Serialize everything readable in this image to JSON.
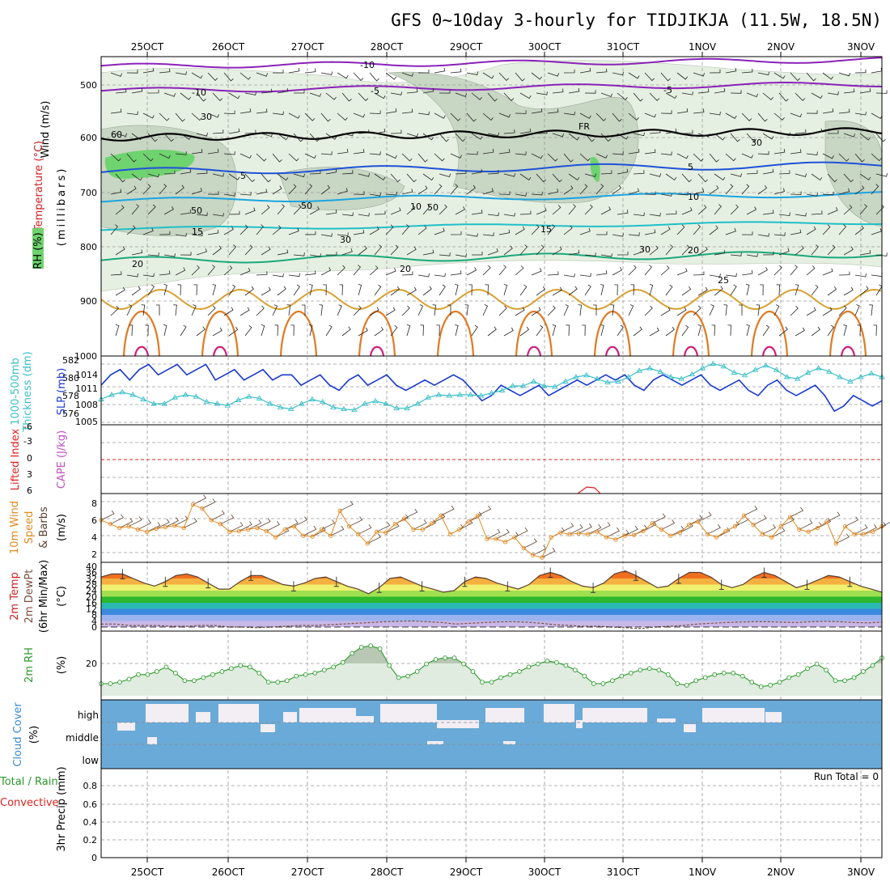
{
  "title": "GFS 0~10day 3-hourly for TIDJIKJA (11.5W, 18.5N)",
  "dates": [
    "25OCT",
    "26OCT",
    "27OCT",
    "28OCT",
    "29OCT",
    "30OCT",
    "31OCT",
    "1NOV",
    "2NOV",
    "3NOV"
  ],
  "colors": {
    "grid": "#9a9a9a",
    "rh_light": "#e6f0e2",
    "rh_mid": "#c8d6c4",
    "rh_dark": "#6fd36f",
    "temp_neg10": "#8a22b8",
    "temp_5": "#1e52d8",
    "temp_10": "#1ba4e0",
    "temp_15": "#1ec0c8",
    "temp_20": "#1aa87a",
    "temp_25": "#d8a030",
    "temp_30": "#e07a22",
    "temp_35": "#d0207a",
    "slp": "#1a3ad0",
    "thickness": "#3ac0c8",
    "lifted": "#e02020",
    "wind10": "#e08a22",
    "rh2m": "#2a9a2a",
    "cloud": "#6aaad8",
    "cloud_clear": "#f2eef4"
  },
  "panels": [
    {
      "id": "upper",
      "labels": [
        "Wind (m/s)",
        "Temperature (°C)",
        "RH (%)",
        "(millibars)"
      ],
      "yticks": [
        "500",
        "600",
        "700",
        "800",
        "900",
        "1000"
      ],
      "contour_labels": [
        "-10",
        "-10",
        "-5",
        "-5",
        "FR",
        "5",
        "5",
        "10",
        "10",
        "15",
        "15",
        "20",
        "20",
        "20",
        "25",
        "30",
        "30",
        "30",
        "30",
        "50",
        "50",
        "50",
        "60"
      ]
    },
    {
      "id": "slp",
      "labels": [
        "1000-500mb",
        "Thickness (dm)",
        "SLP (mb)"
      ],
      "yticks_left": [
        "582",
        "580",
        "578",
        "576"
      ],
      "yticks_right": [
        "1014",
        "1011",
        "1008",
        "1005"
      ]
    },
    {
      "id": "cape",
      "labels": [
        "Lifted Index",
        "CAPE (J/kg)"
      ],
      "yticks": [
        "-6",
        "-3",
        "0",
        "3",
        "6"
      ]
    },
    {
      "id": "wind10",
      "labels": [
        "10m Wind",
        "Speed",
        "& Barbs",
        "(m/s)"
      ],
      "yticks": [
        "8",
        "6",
        "4",
        "2"
      ]
    },
    {
      "id": "temp2m",
      "labels": [
        "2m Temp",
        "2m DewPt",
        "(6hr Min/Max)",
        "(°C)"
      ],
      "yticks": [
        "40",
        "32",
        "24",
        "16",
        "8",
        "0"
      ]
    },
    {
      "id": "rh2m",
      "labels": [
        "2m RH",
        "(%)"
      ],
      "yticks": [
        "20"
      ]
    },
    {
      "id": "cloud",
      "labels": [
        "Cloud Cover",
        "(%)"
      ],
      "yticks": [
        "high",
        "middle",
        "low"
      ]
    },
    {
      "id": "precip",
      "labels": [
        "Total / Rain",
        "Convective",
        "3hr Precip (mm)"
      ],
      "yticks": [
        "0.8",
        "0.6",
        "0.4",
        "0.2",
        "0"
      ],
      "note": "Run Total = 0"
    }
  ],
  "chart_data": [
    {
      "type": "line",
      "name": "SLP and 1000-500mb thickness",
      "series": [
        {
          "name": "SLP (mb)",
          "axis": "right",
          "ylim": [
            1004,
            1016
          ],
          "values": [
            1011,
            1013,
            1014,
            1012,
            1014,
            1015,
            1013,
            1014,
            1015,
            1013,
            1014,
            1015,
            1012,
            1013,
            1014,
            1012,
            1013,
            1014,
            1012,
            1013,
            1013,
            1011,
            1012,
            1013,
            1011,
            1010,
            1012,
            1013,
            1011,
            1012,
            1013,
            1011,
            1010,
            1011,
            1012,
            1011,
            1012,
            1013,
            1012,
            1010,
            1008,
            1009,
            1011,
            1010,
            1009,
            1010,
            1011,
            1009,
            1010,
            1011,
            1012,
            1011,
            1012,
            1013,
            1012,
            1013,
            1011,
            1010,
            1012,
            1013,
            1012,
            1011,
            1012,
            1013,
            1011,
            1010,
            1011,
            1012,
            1010,
            1009,
            1011,
            1012,
            1010,
            1009,
            1010,
            1011,
            1009,
            1006,
            1007,
            1009,
            1008,
            1007,
            1008
          ]
        },
        {
          "name": "1000-500mb Thickness (dm)",
          "axis": "left",
          "ylim": [
            575,
            582
          ],
          "values": [
            577.5,
            578.0,
            578.3,
            578.0,
            577.5,
            577.0,
            577.0,
            577.7,
            578.0,
            577.8,
            577.2,
            577.0,
            576.8,
            577.4,
            577.8,
            577.6,
            577.0,
            576.6,
            576.4,
            577.0,
            577.5,
            577.2,
            576.6,
            576.4,
            576.3,
            577.0,
            577.3,
            577.0,
            576.5,
            576.5,
            577.0,
            577.7,
            578.0,
            577.9,
            578.0,
            578.0,
            577.9,
            578.2,
            578.5,
            579.0,
            579.0,
            579.5,
            579.0,
            578.9,
            579.5,
            580.0,
            580.2,
            579.8,
            579.4,
            579.5,
            580.0,
            580.7,
            581.0,
            580.6,
            580.0,
            579.8,
            580.3,
            581.0,
            581.5,
            581.2,
            580.5,
            580.2,
            580.8,
            581.3,
            580.8,
            580.0,
            579.8,
            580.5,
            581.0,
            580.6,
            580.0,
            579.5,
            580.0,
            580.4,
            580.0
          ]
        }
      ]
    },
    {
      "type": "line",
      "name": "10m Wind Speed",
      "ylim": [
        1,
        9
      ],
      "values": [
        6,
        5.5,
        5.0,
        5.2,
        4.8,
        4.5,
        4.9,
        5.1,
        5.3,
        5.0,
        8,
        7.5,
        6.0,
        5.5,
        4.5,
        4.6,
        4.8,
        5.0,
        4.6,
        3.8,
        4.8,
        5.2,
        4.0,
        3.9,
        4.8,
        4.0,
        7.2,
        5.2,
        4.2,
        3.0,
        4.5,
        4.4,
        5.5,
        6.2,
        4.8,
        4.8,
        5.6,
        6.6,
        4.2,
        4.8,
        5.8,
        6.6,
        3.6,
        3.6,
        3.2,
        3.8,
        2.4,
        1.5,
        1.2,
        3.8,
        4.4,
        4.2,
        4.3,
        4.2,
        4.5,
        3.8,
        3.5,
        4.0,
        4.1,
        4.6,
        5.6,
        4.8,
        4.0,
        4.4,
        5.4,
        5.8,
        4.2,
        3.8,
        4.6,
        5.2,
        6.6,
        5.4,
        4.2,
        3.8,
        5.2,
        6.4,
        4.8,
        4.5,
        5.0,
        5.8,
        3.0,
        5.2,
        4.2,
        4.2,
        4.5,
        5.2
      ]
    },
    {
      "type": "area",
      "name": "2m Temperature",
      "ylim": [
        0,
        40
      ],
      "values": [
        33,
        35,
        35,
        32,
        29,
        27,
        30,
        34,
        35,
        33,
        29,
        25,
        25,
        30,
        34,
        34,
        31,
        28,
        27,
        29,
        32,
        33,
        30,
        27,
        25,
        22,
        26,
        32,
        33,
        30,
        27,
        25,
        23,
        24,
        30,
        33,
        32,
        29,
        27,
        25,
        28,
        34,
        36,
        34,
        30,
        27,
        26,
        29,
        35,
        37,
        34,
        30,
        26,
        27,
        32,
        36,
        36,
        33,
        28,
        26,
        28,
        33,
        36,
        34,
        30,
        26,
        28,
        31,
        34,
        33,
        30,
        27,
        25,
        23
      ],
      "dewpoint": [
        2,
        2,
        1,
        1,
        1,
        0.5,
        0.5,
        1,
        1,
        0,
        0,
        -0.5,
        0,
        0.5,
        1,
        1,
        1.5,
        2.0,
        2.5,
        3.0,
        3.5,
        3.8,
        4.0,
        3.5,
        3.0,
        2.0,
        2.5,
        3.0,
        3.4,
        3.5,
        3.2,
        2.5,
        1.5,
        1.0,
        0.5,
        0.5,
        0,
        -0.5,
        -1,
        0,
        0.5,
        1.0,
        2.0,
        2.5,
        3.0,
        3.3,
        3.5,
        3.5,
        3.2,
        3.0,
        3.5,
        3.8,
        3.5,
        3.0,
        2.8,
        3.2
      ]
    },
    {
      "type": "area",
      "name": "2m RH",
      "ylim": [
        5,
        45
      ],
      "values": [
        13,
        13,
        14,
        16,
        19,
        19,
        21,
        24,
        20,
        15,
        15,
        17,
        19,
        21,
        23,
        25,
        24,
        20,
        14,
        14,
        15,
        18,
        19,
        20,
        22,
        24,
        27,
        33,
        37,
        38,
        36,
        25,
        17,
        18,
        21,
        26,
        29,
        30,
        30,
        26,
        21,
        14,
        14,
        17,
        19,
        21,
        24,
        26,
        28,
        27,
        25,
        22,
        18,
        13,
        13,
        15,
        18,
        20,
        22,
        23,
        22,
        19,
        13,
        12,
        15,
        17,
        19,
        20,
        20,
        18,
        14,
        11,
        12,
        14,
        17,
        19,
        23,
        26,
        22,
        15,
        15,
        17,
        21,
        25,
        30
      ]
    },
    {
      "type": "bar",
      "name": "Cloud Cover",
      "levels": [
        "high",
        "middle",
        "low"
      ],
      "note": "high-level cloud cover varies; middle and low levels largely covered"
    },
    {
      "type": "bar",
      "name": "3hr Precip",
      "values": [],
      "ylim": [
        0,
        1
      ],
      "note": "Run Total = 0"
    }
  ]
}
